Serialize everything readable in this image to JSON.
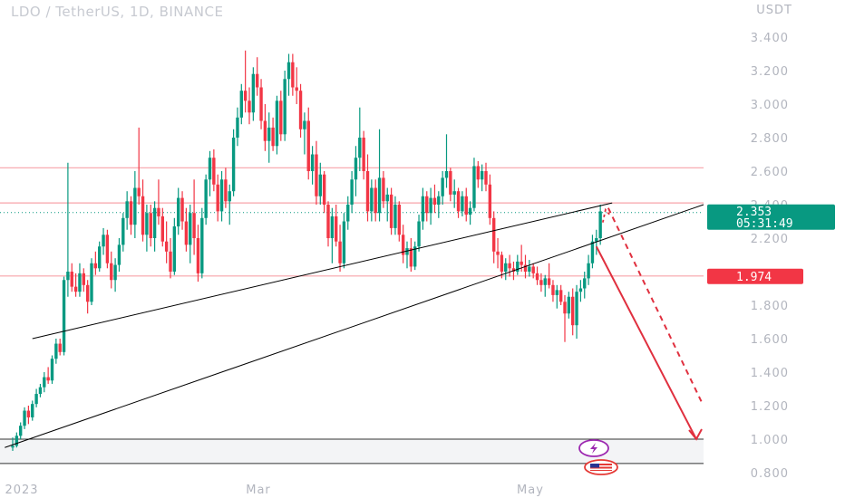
{
  "header": {
    "title": "LDO / TetherUS, 1D, BINANCE",
    "currency": "USDT"
  },
  "colors": {
    "up": "#089981",
    "down": "#f23645",
    "level_line": "#f7a3a8",
    "trendline": "#000000",
    "arrow": "#e0303f",
    "badge_green": "#089981",
    "badge_red": "#f23645",
    "zone": "#f3f4f6"
  },
  "icons": [
    "lightning-icon",
    "us-flag-icon"
  ],
  "chart_data": {
    "type": "candlestick",
    "title": "LDO / TetherUS, 1D, BINANCE",
    "y_unit": "USDT",
    "ylim": [
      0.8,
      3.44
    ],
    "y_ticks": [
      "3.400",
      "3.200",
      "3.000",
      "2.800",
      "2.600",
      "2.400",
      "2.200",
      "1.800",
      "1.600",
      "1.400",
      "1.200",
      "1.000",
      "0.800"
    ],
    "x_labels": [
      "2023",
      "Mar",
      "May"
    ],
    "grid": false,
    "last_price": "2.353",
    "countdown": "05:31:49",
    "marked_price": "1.974",
    "horizontal_levels": [
      2.62,
      2.41,
      1.974
    ],
    "support_zone": [
      0.855,
      1.0
    ],
    "trendlines": [
      {
        "from": [
          "bar 5",
          0.95
        ],
        "to": [
          "bar 158",
          2.4
        ]
      },
      {
        "from": [
          "bar 10",
          1.6
        ],
        "to": [
          "bar 168",
          2.41
        ]
      }
    ],
    "projection_target": 1.0,
    "candles": [
      [
        0.95,
        1.01,
        0.93,
        0.96
      ],
      [
        0.96,
        1.04,
        0.95,
        1.02
      ],
      [
        1.02,
        1.1,
        1.0,
        1.08
      ],
      [
        1.08,
        1.19,
        1.06,
        1.17
      ],
      [
        1.17,
        1.2,
        1.09,
        1.13
      ],
      [
        1.13,
        1.23,
        1.11,
        1.21
      ],
      [
        1.21,
        1.3,
        1.19,
        1.27
      ],
      [
        1.27,
        1.33,
        1.25,
        1.31
      ],
      [
        1.31,
        1.4,
        1.28,
        1.37
      ],
      [
        1.37,
        1.43,
        1.33,
        1.35
      ],
      [
        1.35,
        1.5,
        1.33,
        1.48
      ],
      [
        1.48,
        1.6,
        1.45,
        1.57
      ],
      [
        1.57,
        1.6,
        1.5,
        1.52
      ],
      [
        1.52,
        1.97,
        1.5,
        1.95
      ],
      [
        1.95,
        2.65,
        1.85,
        2.0
      ],
      [
        2.0,
        2.05,
        1.88,
        1.91
      ],
      [
        1.91,
        1.99,
        1.85,
        1.88
      ],
      [
        1.88,
        2.05,
        1.85,
        1.99
      ],
      [
        1.99,
        2.02,
        1.88,
        1.92
      ],
      [
        1.92,
        1.95,
        1.75,
        1.82
      ],
      [
        1.82,
        2.08,
        1.8,
        2.05
      ],
      [
        2.05,
        2.12,
        1.98,
        2.02
      ],
      [
        2.02,
        2.18,
        2.0,
        2.15
      ],
      [
        2.15,
        2.26,
        2.1,
        2.22
      ],
      [
        2.22,
        2.25,
        2.02,
        2.05
      ],
      [
        2.05,
        2.12,
        1.9,
        1.95
      ],
      [
        1.95,
        2.08,
        1.88,
        2.04
      ],
      [
        2.04,
        2.2,
        2.0,
        2.16
      ],
      [
        2.16,
        2.35,
        2.12,
        2.32
      ],
      [
        2.32,
        2.48,
        2.25,
        2.42
      ],
      [
        2.42,
        2.45,
        2.22,
        2.28
      ],
      [
        2.28,
        2.6,
        2.2,
        2.5
      ],
      [
        2.5,
        2.86,
        2.4,
        2.45
      ],
      [
        2.45,
        2.55,
        2.18,
        2.22
      ],
      [
        2.22,
        2.4,
        2.12,
        2.35
      ],
      [
        2.35,
        2.4,
        2.15,
        2.2
      ],
      [
        2.2,
        2.42,
        2.12,
        2.38
      ],
      [
        2.38,
        2.55,
        2.28,
        2.33
      ],
      [
        2.33,
        2.38,
        2.15,
        2.18
      ],
      [
        2.18,
        2.3,
        2.05,
        2.12
      ],
      [
        2.12,
        2.2,
        1.96,
        2.0
      ],
      [
        2.0,
        2.32,
        1.98,
        2.27
      ],
      [
        2.27,
        2.5,
        2.22,
        2.44
      ],
      [
        2.44,
        2.48,
        2.25,
        2.3
      ],
      [
        2.3,
        2.38,
        2.12,
        2.16
      ],
      [
        2.16,
        2.4,
        2.05,
        2.35
      ],
      [
        2.35,
        2.55,
        2.1,
        2.2
      ],
      [
        2.2,
        2.28,
        1.94,
        1.99
      ],
      [
        1.99,
        2.38,
        1.96,
        2.32
      ],
      [
        2.32,
        2.58,
        2.28,
        2.55
      ],
      [
        2.55,
        2.72,
        2.45,
        2.68
      ],
      [
        2.68,
        2.73,
        2.48,
        2.52
      ],
      [
        2.52,
        2.58,
        2.3,
        2.36
      ],
      [
        2.36,
        2.6,
        2.3,
        2.55
      ],
      [
        2.55,
        2.62,
        2.38,
        2.42
      ],
      [
        2.42,
        2.52,
        2.28,
        2.48
      ],
      [
        2.48,
        2.85,
        2.45,
        2.8
      ],
      [
        2.8,
        2.98,
        2.75,
        2.92
      ],
      [
        2.92,
        3.12,
        2.88,
        3.08
      ],
      [
        3.08,
        3.32,
        2.95,
        3.02
      ],
      [
        3.02,
        3.1,
        2.88,
        2.95
      ],
      [
        2.95,
        3.22,
        2.9,
        3.18
      ],
      [
        3.18,
        3.28,
        3.05,
        3.1
      ],
      [
        3.1,
        3.15,
        2.85,
        2.9
      ],
      [
        2.9,
        3.0,
        2.72,
        2.78
      ],
      [
        2.78,
        2.95,
        2.65,
        2.86
      ],
      [
        2.86,
        2.92,
        2.72,
        2.75
      ],
      [
        2.75,
        3.05,
        2.7,
        3.02
      ],
      [
        3.02,
        3.08,
        2.78,
        2.82
      ],
      [
        2.82,
        3.2,
        2.78,
        3.15
      ],
      [
        3.15,
        3.3,
        3.05,
        3.25
      ],
      [
        3.25,
        3.3,
        3.05,
        3.1
      ],
      [
        3.1,
        3.22,
        3.0,
        3.08
      ],
      [
        3.08,
        3.12,
        2.8,
        2.85
      ],
      [
        2.85,
        2.95,
        2.7,
        2.9
      ],
      [
        2.9,
        2.98,
        2.55,
        2.6
      ],
      [
        2.6,
        2.75,
        2.52,
        2.7
      ],
      [
        2.7,
        2.78,
        2.4,
        2.45
      ],
      [
        2.45,
        2.65,
        2.4,
        2.58
      ],
      [
        2.58,
        2.6,
        2.35,
        2.4
      ],
      [
        2.4,
        2.42,
        2.15,
        2.2
      ],
      [
        2.2,
        2.38,
        2.05,
        2.33
      ],
      [
        2.33,
        2.4,
        2.15,
        2.18
      ],
      [
        2.18,
        2.28,
        2.0,
        2.05
      ],
      [
        2.05,
        2.35,
        2.02,
        2.3
      ],
      [
        2.3,
        2.45,
        2.25,
        2.4
      ],
      [
        2.4,
        2.6,
        2.35,
        2.55
      ],
      [
        2.55,
        2.75,
        2.45,
        2.68
      ],
      [
        2.68,
        2.98,
        2.6,
        2.8
      ],
      [
        2.8,
        2.84,
        2.55,
        2.6
      ],
      [
        2.6,
        2.7,
        2.3,
        2.36
      ],
      [
        2.36,
        2.55,
        2.3,
        2.5
      ],
      [
        2.5,
        2.55,
        2.3,
        2.35
      ],
      [
        2.35,
        2.85,
        2.3,
        2.56
      ],
      [
        2.56,
        2.6,
        2.38,
        2.42
      ],
      [
        2.42,
        2.5,
        2.3,
        2.46
      ],
      [
        2.46,
        2.5,
        2.22,
        2.26
      ],
      [
        2.26,
        2.45,
        2.22,
        2.4
      ],
      [
        2.4,
        2.42,
        2.18,
        2.22
      ],
      [
        2.22,
        2.28,
        2.05,
        2.1
      ],
      [
        2.1,
        2.18,
        2.02,
        2.14
      ],
      [
        2.14,
        2.2,
        2.0,
        2.03
      ],
      [
        2.03,
        2.18,
        2.01,
        2.15
      ],
      [
        2.15,
        2.34,
        2.12,
        2.3
      ],
      [
        2.3,
        2.5,
        2.25,
        2.45
      ],
      [
        2.45,
        2.48,
        2.3,
        2.35
      ],
      [
        2.35,
        2.5,
        2.28,
        2.44
      ],
      [
        2.44,
        2.52,
        2.35,
        2.4
      ],
      [
        2.4,
        2.48,
        2.32,
        2.45
      ],
      [
        2.45,
        2.6,
        2.4,
        2.56
      ],
      [
        2.56,
        2.82,
        2.5,
        2.6
      ],
      [
        2.6,
        2.62,
        2.42,
        2.46
      ],
      [
        2.46,
        2.55,
        2.38,
        2.48
      ],
      [
        2.48,
        2.5,
        2.32,
        2.36
      ],
      [
        2.36,
        2.48,
        2.33,
        2.45
      ],
      [
        2.45,
        2.5,
        2.3,
        2.34
      ],
      [
        2.34,
        2.42,
        2.28,
        2.38
      ],
      [
        2.38,
        2.68,
        2.36,
        2.63
      ],
      [
        2.63,
        2.66,
        2.5,
        2.55
      ],
      [
        2.55,
        2.64,
        2.48,
        2.6
      ],
      [
        2.6,
        2.65,
        2.48,
        2.52
      ],
      [
        2.52,
        2.58,
        2.28,
        2.32
      ],
      [
        2.32,
        2.36,
        2.05,
        2.12
      ],
      [
        2.12,
        2.2,
        2.02,
        2.1
      ],
      [
        2.1,
        2.12,
        1.96,
        2.0
      ],
      [
        2.0,
        2.08,
        1.95,
        2.05
      ],
      [
        2.05,
        2.1,
        1.97,
        2.02
      ],
      [
        2.02,
        2.06,
        1.95,
        2.0
      ],
      [
        2.0,
        2.1,
        1.98,
        2.06
      ],
      [
        2.06,
        2.16,
        2.0,
        2.04
      ],
      [
        2.04,
        2.1,
        1.96,
        2.0
      ],
      [
        2.0,
        2.07,
        1.97,
        2.03
      ],
      [
        2.03,
        2.05,
        1.96,
        1.99
      ],
      [
        1.99,
        2.03,
        1.92,
        1.95
      ],
      [
        1.95,
        1.99,
        1.88,
        1.92
      ],
      [
        1.92,
        1.98,
        1.85,
        1.96
      ],
      [
        1.96,
        2.05,
        1.9,
        1.92
      ],
      [
        1.92,
        1.95,
        1.82,
        1.86
      ],
      [
        1.86,
        1.92,
        1.78,
        1.89
      ],
      [
        1.89,
        1.92,
        1.8,
        1.82
      ],
      [
        1.82,
        1.86,
        1.58,
        1.75
      ],
      [
        1.75,
        1.88,
        1.72,
        1.85
      ],
      [
        1.85,
        1.9,
        1.62,
        1.68
      ],
      [
        1.68,
        1.92,
        1.6,
        1.88
      ],
      [
        1.88,
        1.95,
        1.82,
        1.9
      ],
      [
        1.9,
        2.0,
        1.84,
        1.96
      ],
      [
        1.96,
        2.1,
        1.92,
        2.05
      ],
      [
        2.05,
        2.22,
        2.02,
        2.18
      ],
      [
        2.18,
        2.25,
        2.1,
        2.2
      ],
      [
        2.2,
        2.4,
        2.16,
        2.36
      ]
    ]
  }
}
